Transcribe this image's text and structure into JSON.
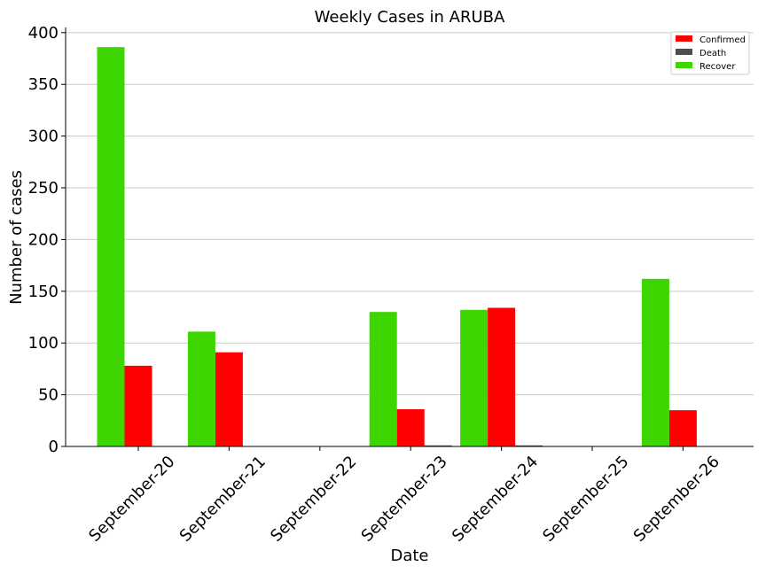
{
  "chart_data": {
    "type": "bar",
    "title": "Weekly Cases in ARUBA",
    "xlabel": "Date",
    "ylabel": "Number of cases",
    "categories": [
      "September-20",
      "September-21",
      "September-22",
      "September-23",
      "September-24",
      "September-25",
      "September-26"
    ],
    "series": [
      {
        "name": "Recover",
        "color": "#3dd600",
        "values": [
          386,
          111,
          0,
          130,
          132,
          0,
          162
        ]
      },
      {
        "name": "Confirmed",
        "color": "#ff0000",
        "values": [
          78,
          91,
          0,
          36,
          134,
          0,
          35
        ]
      },
      {
        "name": "Death",
        "color": "#4d4d4d",
        "values": [
          0,
          0,
          0,
          1,
          1,
          0,
          0
        ]
      }
    ],
    "legend": {
      "position": "top-right",
      "entries": [
        {
          "label": "Confirmed",
          "color": "#ff0000"
        },
        {
          "label": "Death",
          "color": "#4d4d4d"
        },
        {
          "label": "Recover",
          "color": "#3dd600"
        }
      ]
    },
    "yticks": [
      0,
      50,
      100,
      150,
      200,
      250,
      300,
      350,
      400
    ],
    "ylim": [
      0,
      405
    ],
    "grid": "horizontal"
  }
}
